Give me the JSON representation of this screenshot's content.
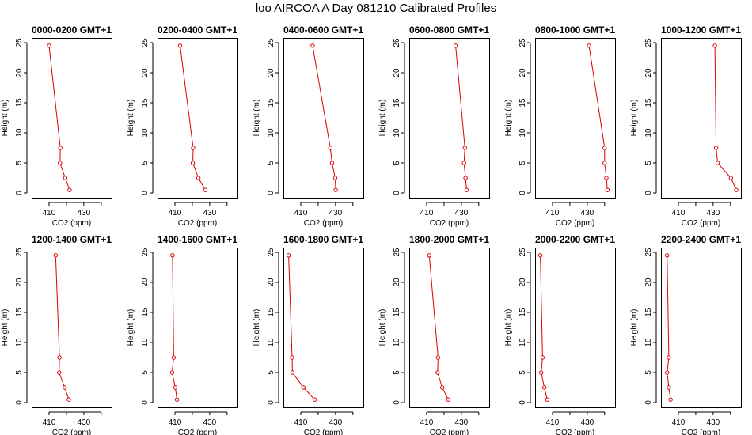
{
  "title": "loo AIRCOA A  Day 081210  Calibrated Profiles",
  "colors": {
    "series": "#dd0000",
    "axis": "#000000",
    "background": "#ffffff"
  },
  "chart_data": [
    {
      "type": "line",
      "title": "0000-0200 GMT+1",
      "xlabel": "CO2 (ppm)",
      "ylabel": "Height (m)",
      "xlim": [
        400,
        446
      ],
      "ylim": [
        0,
        25
      ],
      "xticks": [
        "410",
        "430"
      ],
      "yticks": [
        "0",
        "5",
        "10",
        "15",
        "20",
        "25"
      ],
      "series": [
        {
          "x": [
            410.0,
            416.5,
            416.3,
            419.3,
            421.8
          ],
          "y": [
            24.5,
            7.5,
            5.0,
            2.5,
            0.5
          ]
        }
      ]
    },
    {
      "type": "line",
      "title": "0200-0400 GMT+1",
      "xlabel": "CO2 (ppm)",
      "ylabel": "Height (m)",
      "xlim": [
        400,
        446
      ],
      "ylim": [
        0,
        25
      ],
      "xticks": [
        "410",
        "430"
      ],
      "yticks": [
        "0",
        "5",
        "10",
        "15",
        "20",
        "25"
      ],
      "series": [
        {
          "x": [
            413.0,
            420.5,
            420.3,
            423.5,
            427.5
          ],
          "y": [
            24.5,
            7.5,
            5.0,
            2.5,
            0.5
          ]
        }
      ]
    },
    {
      "type": "line",
      "title": "0400-0600 GMT+1",
      "xlabel": "CO2 (ppm)",
      "ylabel": "Height (m)",
      "xlim": [
        400,
        446
      ],
      "ylim": [
        0,
        25
      ],
      "xticks": [
        "410",
        "430"
      ],
      "yticks": [
        "0",
        "5",
        "10",
        "15",
        "20",
        "25"
      ],
      "series": [
        {
          "x": [
            416.8,
            427.0,
            428.0,
            429.8,
            430.1
          ],
          "y": [
            24.5,
            7.5,
            5.0,
            2.5,
            0.5
          ]
        }
      ]
    },
    {
      "type": "line",
      "title": "0600-0800 GMT+1",
      "xlabel": "CO2 (ppm)",
      "ylabel": "Height (m)",
      "xlim": [
        400,
        446
      ],
      "ylim": [
        0,
        25
      ],
      "xticks": [
        "410",
        "430"
      ],
      "yticks": [
        "0",
        "5",
        "10",
        "15",
        "20",
        "25"
      ],
      "series": [
        {
          "x": [
            426.7,
            432.0,
            431.5,
            432.4,
            433.0
          ],
          "y": [
            24.5,
            7.5,
            5.0,
            2.5,
            0.5
          ]
        }
      ]
    },
    {
      "type": "line",
      "title": "0800-1000 GMT+1",
      "xlabel": "CO2 (ppm)",
      "ylabel": "Height (m)",
      "xlim": [
        400,
        446
      ],
      "ylim": [
        0,
        25
      ],
      "xticks": [
        "410",
        "430"
      ],
      "yticks": [
        "0",
        "5",
        "10",
        "15",
        "20",
        "25"
      ],
      "series": [
        {
          "x": [
            431.0,
            440.0,
            440.0,
            441.0,
            441.6
          ],
          "y": [
            24.5,
            7.5,
            5.0,
            2.5,
            0.5
          ]
        }
      ]
    },
    {
      "type": "line",
      "title": "1000-1200 GMT+1",
      "xlabel": "CO2 (ppm)",
      "ylabel": "Height (m)",
      "xlim": [
        400,
        446
      ],
      "ylim": [
        0,
        25
      ],
      "xticks": [
        "410",
        "430"
      ],
      "yticks": [
        "0",
        "5",
        "10",
        "15",
        "20",
        "25"
      ],
      "series": [
        {
          "x": [
            431.0,
            431.7,
            432.6,
            440.2,
            443.3
          ],
          "y": [
            24.5,
            7.5,
            5.0,
            2.5,
            0.5
          ]
        }
      ]
    },
    {
      "type": "line",
      "title": "1200-1400 GMT+1",
      "xlabel": "CO2 (ppm)",
      "ylabel": "Height (m)",
      "xlim": [
        400,
        446
      ],
      "ylim": [
        0,
        25
      ],
      "xticks": [
        "410",
        "430"
      ],
      "yticks": [
        "0",
        "5",
        "10",
        "15",
        "20",
        "25"
      ],
      "series": [
        {
          "x": [
            413.8,
            416.0,
            415.8,
            419.0,
            421.4
          ],
          "y": [
            24.5,
            7.5,
            5.0,
            2.5,
            0.5
          ]
        }
      ]
    },
    {
      "type": "line",
      "title": "1400-1600 GMT+1",
      "xlabel": "CO2 (ppm)",
      "ylabel": "Height (m)",
      "xlim": [
        400,
        446
      ],
      "ylim": [
        0,
        25
      ],
      "xticks": [
        "410",
        "430"
      ],
      "yticks": [
        "0",
        "5",
        "10",
        "15",
        "20",
        "25"
      ],
      "series": [
        {
          "x": [
            408.6,
            409.3,
            408.4,
            410.2,
            411.2
          ],
          "y": [
            24.5,
            7.5,
            5.0,
            2.5,
            0.5
          ]
        }
      ]
    },
    {
      "type": "line",
      "title": "1600-1800 GMT+1",
      "xlabel": "CO2 (ppm)",
      "ylabel": "Height (m)",
      "xlim": [
        400,
        446
      ],
      "ylim": [
        0,
        25
      ],
      "xticks": [
        "410",
        "430"
      ],
      "yticks": [
        "0",
        "5",
        "10",
        "15",
        "20",
        "25"
      ],
      "series": [
        {
          "x": [
            403.0,
            405.0,
            405.2,
            411.5,
            418.0
          ],
          "y": [
            24.5,
            7.5,
            5.0,
            2.5,
            0.5
          ]
        }
      ]
    },
    {
      "type": "line",
      "title": "1800-2000 GMT+1",
      "xlabel": "CO2 (ppm)",
      "ylabel": "Height (m)",
      "xlim": [
        400,
        446
      ],
      "ylim": [
        0,
        25
      ],
      "xticks": [
        "410",
        "430"
      ],
      "yticks": [
        "0",
        "5",
        "10",
        "15",
        "20",
        "25"
      ],
      "series": [
        {
          "x": [
            411.5,
            416.6,
            416.3,
            419.0,
            422.4
          ],
          "y": [
            24.5,
            7.5,
            5.0,
            2.5,
            0.5
          ]
        }
      ]
    },
    {
      "type": "line",
      "title": "2000-2200 GMT+1",
      "xlabel": "CO2 (ppm)",
      "ylabel": "Height (m)",
      "xlim": [
        400,
        446
      ],
      "ylim": [
        0,
        25
      ],
      "xticks": [
        "410",
        "430"
      ],
      "yticks": [
        "0",
        "5",
        "10",
        "15",
        "20",
        "25"
      ],
      "series": [
        {
          "x": [
            403.0,
            404.3,
            403.5,
            405.3,
            407.0
          ],
          "y": [
            24.5,
            7.5,
            5.0,
            2.5,
            0.5
          ]
        }
      ]
    },
    {
      "type": "line",
      "title": "2200-2400 GMT+1",
      "xlabel": "CO2 (ppm)",
      "ylabel": "Height (m)",
      "xlim": [
        400,
        446
      ],
      "ylim": [
        0,
        25
      ],
      "xticks": [
        "410",
        "430"
      ],
      "yticks": [
        "0",
        "5",
        "10",
        "15",
        "20",
        "25"
      ],
      "series": [
        {
          "x": [
            403.5,
            404.5,
            403.5,
            404.5,
            405.5
          ],
          "y": [
            24.5,
            7.5,
            5.0,
            2.5,
            0.5
          ]
        }
      ]
    }
  ]
}
